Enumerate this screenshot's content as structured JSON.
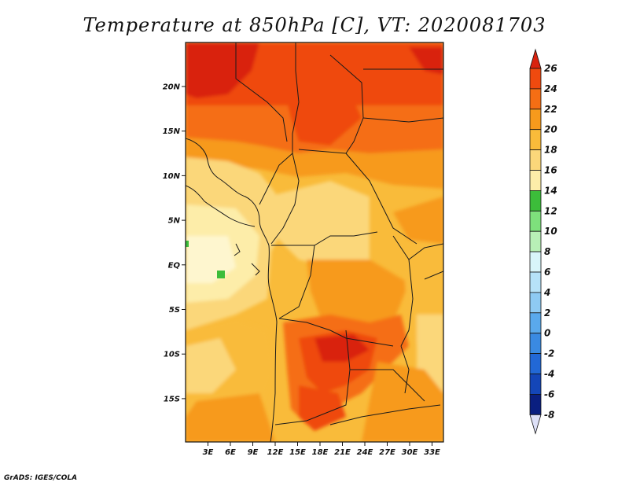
{
  "title": "Temperature at 850hPa [C], VT: 2020081703",
  "credit": "GrADS: IGES/COLA",
  "map": {
    "lon_ticks": [
      "3E",
      "6E",
      "9E",
      "12E",
      "15E",
      "18E",
      "21E",
      "24E",
      "27E",
      "30E",
      "33E"
    ],
    "lat_ticks": [
      "20N",
      "15N",
      "10N",
      "5N",
      "EQ",
      "5S",
      "10S",
      "15S"
    ],
    "lon_range": [
      0,
      35
    ],
    "lat_range": [
      -20,
      25
    ]
  },
  "colorbar": {
    "labels": [
      "26",
      "24",
      "22",
      "20",
      "18",
      "16",
      "14",
      "12",
      "10",
      "8",
      "6",
      "4",
      "2",
      "0",
      "-2",
      "-4",
      "-6",
      "-8"
    ],
    "colors": [
      "#d9230f",
      "#ef4a0f",
      "#f56e14",
      "#f79a1c",
      "#f9bb3a",
      "#fbd77a",
      "#fdeda9",
      "#3cbd3a",
      "#7ee07c",
      "#b8f0b6",
      "#d8f5fa",
      "#b6e2f8",
      "#8ecaf3",
      "#5aa9ec",
      "#3a8ae2",
      "#2268d6",
      "#1446b8",
      "#0a1f80",
      "#dde0f7"
    ],
    "top_color": "#d9230f",
    "bottom_color": "#dde0f7"
  }
}
